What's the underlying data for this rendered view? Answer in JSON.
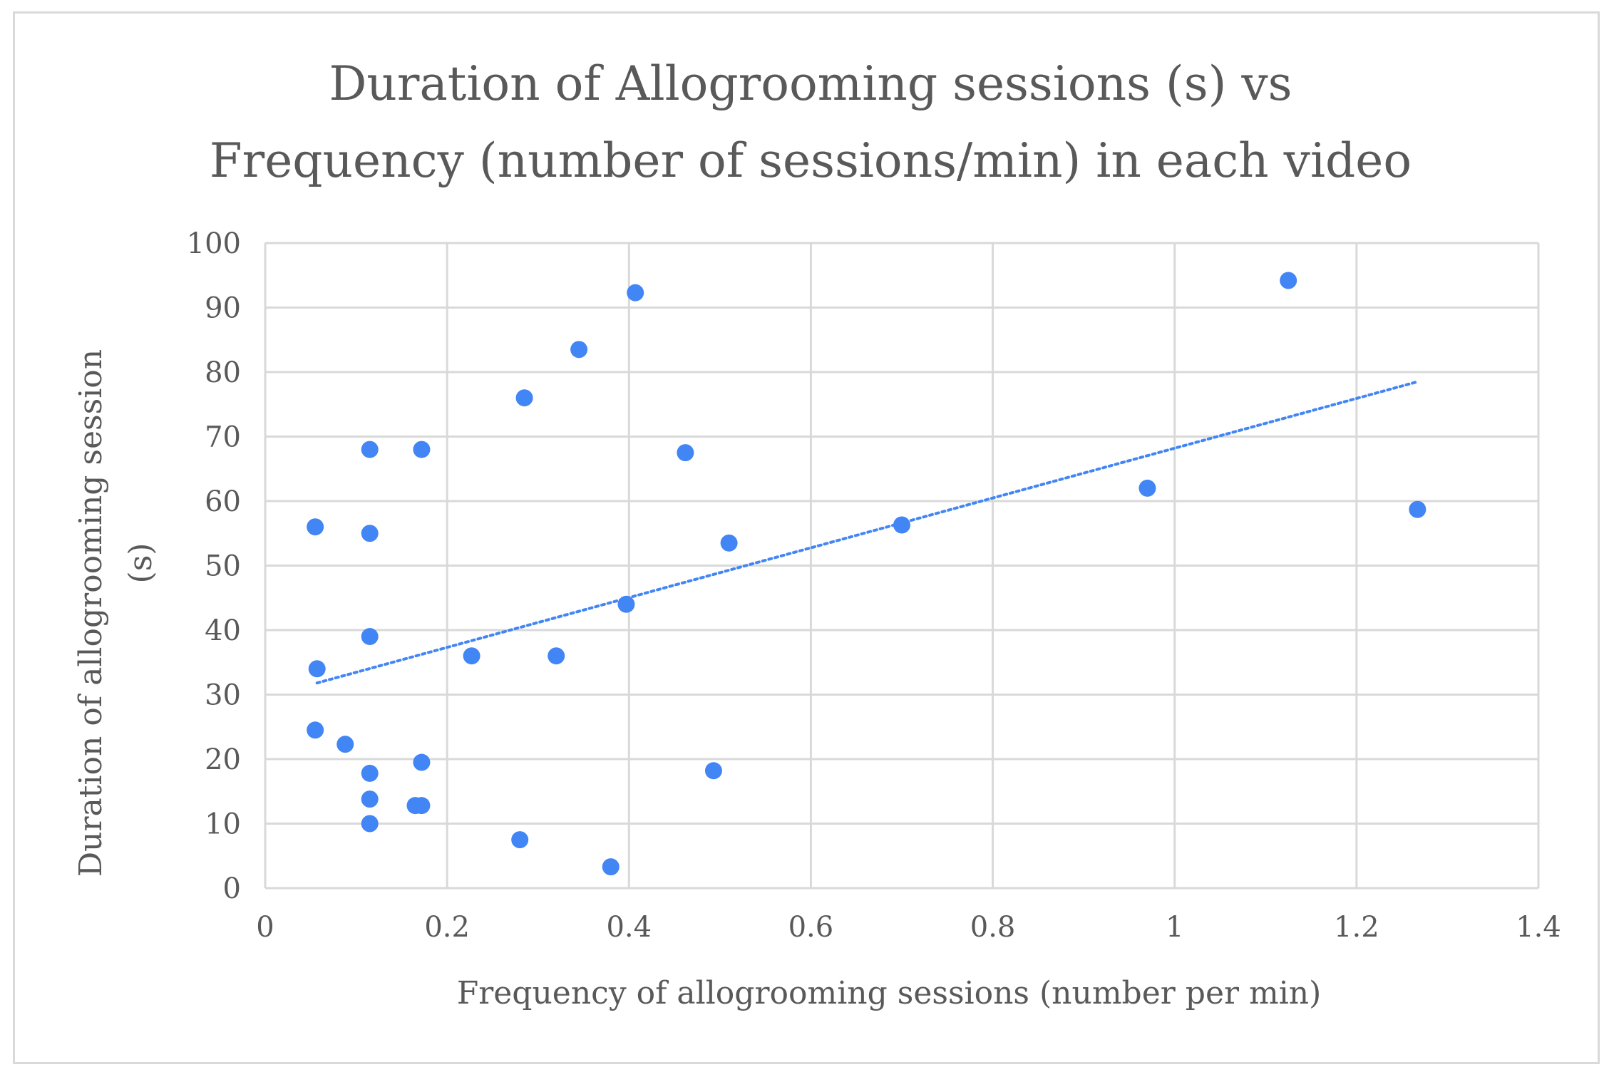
{
  "chart_data": {
    "type": "scatter",
    "title": [
      "Duration of Allogrooming sessions (s) vs",
      "Frequency (number of sessions/min) in each video"
    ],
    "xlabel": "Frequency of allogrooming sessions (number per min)",
    "ylabel": [
      "Duration of allogrooming session",
      "(s)"
    ],
    "xlim": [
      0,
      1.4
    ],
    "ylim": [
      0,
      100
    ],
    "xticks": [
      0,
      0.2,
      0.4,
      0.6,
      0.8,
      1,
      1.2,
      1.4
    ],
    "xtick_labels": [
      "0",
      "0.2",
      "0.4",
      "0.6",
      "0.8",
      "1",
      "1.2",
      "1.4"
    ],
    "yticks": [
      0,
      10,
      20,
      30,
      40,
      50,
      60,
      70,
      80,
      90,
      100
    ],
    "ytick_labels": [
      "0",
      "10",
      "20",
      "30",
      "40",
      "50",
      "60",
      "70",
      "80",
      "90",
      "100"
    ],
    "grid": true,
    "marker_color": "#4285f4",
    "trendline": {
      "style": "dotted",
      "color": "#4285f4",
      "x": [
        0.057,
        1.267
      ],
      "y": [
        31.8,
        78.5
      ]
    },
    "series": [
      {
        "name": "Allogrooming sessions",
        "points": [
          [
            0.055,
            56
          ],
          [
            0.057,
            34
          ],
          [
            0.055,
            24.5
          ],
          [
            0.088,
            22.3
          ],
          [
            0.115,
            68
          ],
          [
            0.115,
            55
          ],
          [
            0.115,
            39
          ],
          [
            0.115,
            17.8
          ],
          [
            0.115,
            13.8
          ],
          [
            0.115,
            10
          ],
          [
            0.172,
            68
          ],
          [
            0.172,
            19.5
          ],
          [
            0.165,
            12.8
          ],
          [
            0.172,
            12.8
          ],
          [
            0.227,
            36
          ],
          [
            0.28,
            7.5
          ],
          [
            0.285,
            76
          ],
          [
            0.32,
            36
          ],
          [
            0.345,
            83.5
          ],
          [
            0.38,
            3.3
          ],
          [
            0.397,
            44
          ],
          [
            0.407,
            92.3
          ],
          [
            0.462,
            67.5
          ],
          [
            0.493,
            18.2
          ],
          [
            0.51,
            53.5
          ],
          [
            0.7,
            56.3
          ],
          [
            0.97,
            62
          ],
          [
            1.125,
            94.2
          ],
          [
            1.267,
            58.7
          ]
        ]
      }
    ]
  }
}
